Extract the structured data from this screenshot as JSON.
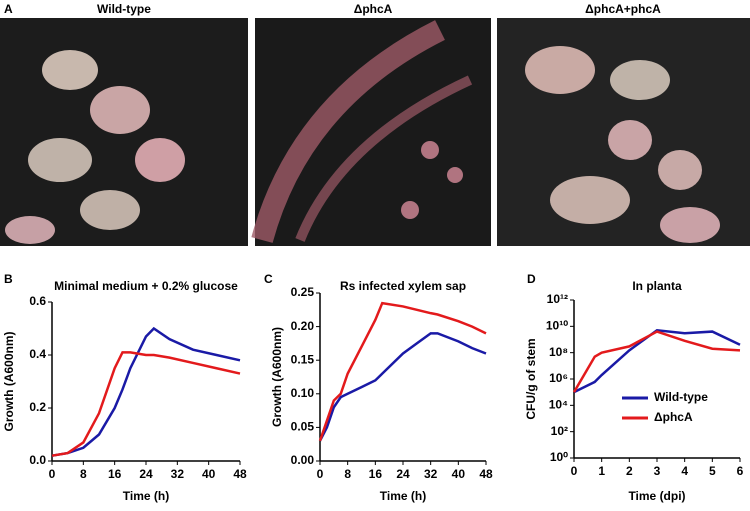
{
  "photos": {
    "panel": "A",
    "labels": [
      "Wild-type",
      "ΔphcA",
      "ΔphcA+phcA"
    ]
  },
  "chart_data": [
    {
      "type": "line",
      "panel": "B",
      "title": "Minimal medium + 0.2% glucose",
      "xlabel": "Time (h)",
      "ylabel": "Growth (A600nm)",
      "x": [
        0,
        4,
        8,
        12,
        16,
        18,
        20,
        24,
        26,
        30,
        36,
        42,
        48
      ],
      "series": [
        {
          "color": "#1a1aa6",
          "values": [
            0.02,
            0.03,
            0.05,
            0.1,
            0.2,
            0.27,
            0.35,
            0.47,
            0.5,
            0.46,
            0.42,
            0.4,
            0.38
          ]
        },
        {
          "color": "#e31a1c",
          "values": [
            0.02,
            0.03,
            0.07,
            0.18,
            0.35,
            0.41,
            0.41,
            0.4,
            0.4,
            0.39,
            0.37,
            0.35,
            0.33
          ]
        }
      ],
      "xlim": [
        0,
        48
      ],
      "xticks": [
        0,
        8,
        16,
        24,
        32,
        40,
        48
      ],
      "ylim": [
        0,
        0.6
      ],
      "yticks": [
        {
          "value": 0,
          "label": "0.0"
        },
        0.2,
        0.4,
        0.6
      ]
    },
    {
      "type": "line",
      "panel": "C",
      "title": "Rs infected xylem sap",
      "xlabel": "Time (h)",
      "ylabel": "Growth (A600nm)",
      "x": [
        0,
        2,
        4,
        6,
        8,
        12,
        16,
        18,
        24,
        28,
        32,
        34,
        40,
        44,
        48
      ],
      "series": [
        {
          "color": "#1a1aa6",
          "values": [
            0.03,
            0.05,
            0.08,
            0.095,
            0.1,
            0.11,
            0.12,
            0.13,
            0.16,
            0.175,
            0.19,
            0.19,
            0.178,
            0.168,
            0.16
          ]
        },
        {
          "color": "#e31a1c",
          "values": [
            0.03,
            0.06,
            0.09,
            0.1,
            0.13,
            0.17,
            0.21,
            0.235,
            0.23,
            0.225,
            0.22,
            0.218,
            0.208,
            0.2,
            0.19
          ]
        }
      ],
      "xlim": [
        0,
        48
      ],
      "xticks": [
        0,
        8,
        16,
        24,
        32,
        40,
        48
      ],
      "ylim": [
        0,
        0.25
      ],
      "yticks": [
        {
          "value": 0,
          "label": "0.00"
        },
        0.05,
        {
          "value": 0.1,
          "label": "0.10"
        },
        0.15,
        {
          "value": 0.2,
          "label": "0.20"
        },
        0.25
      ]
    },
    {
      "type": "line",
      "panel": "D",
      "title": "In planta",
      "xlabel": "Time (dpi)",
      "ylabel": "CFU/g of stem",
      "x": [
        0,
        0.75,
        1,
        2,
        3,
        4,
        5,
        6
      ],
      "series": [
        {
          "name": "Wild-type",
          "color": "#1a1aa6",
          "values": [
            100000,
            600000,
            2000000,
            150000000,
            5000000000,
            3000000000,
            4000000000,
            400000000
          ]
        },
        {
          "name": "ΔphcA",
          "color": "#e31a1c",
          "values": [
            100000,
            50000000,
            100000000,
            300000000,
            4000000000,
            800000000,
            200000000,
            150000000
          ]
        }
      ],
      "xlim": [
        0,
        6
      ],
      "xticks": [
        0,
        1,
        2,
        3,
        4,
        5,
        6
      ],
      "ylim": [
        1,
        1000000000000
      ],
      "log_y": true,
      "yticks": [
        {
          "value": 1,
          "label": "10⁰"
        },
        {
          "value": 100,
          "label": "10²"
        },
        {
          "value": 10000,
          "label": "10⁴"
        },
        {
          "value": 1000000,
          "label": "10⁶"
        },
        {
          "value": 100000000,
          "label": "10⁸"
        },
        {
          "value": 10000000000,
          "label": "10¹⁰"
        },
        {
          "value": 1000000000000,
          "label": "10¹²"
        }
      ],
      "legend": "lower right"
    }
  ]
}
